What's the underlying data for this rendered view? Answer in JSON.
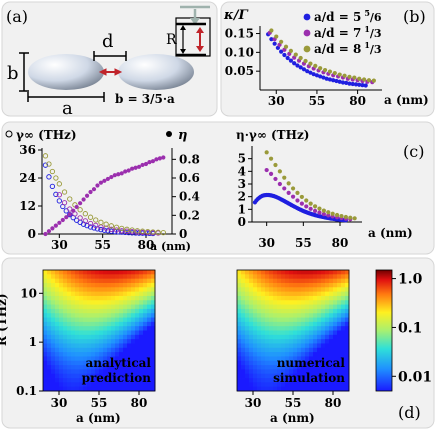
{
  "panels": {
    "a": {
      "tag": "(a)",
      "label_b": "b",
      "label_a": "a",
      "label_d": "d",
      "label_R": "R",
      "relation": "b = 3/5·a"
    }
  },
  "colors": {
    "background": "#ffffff",
    "panel_bg": "#f1f1f1",
    "panel_border": "#d6d6d6",
    "ratio_5_5_6": "#1f1fe0",
    "ratio_7_1_3": "#9b2fae",
    "ratio_8_1_3": "#9a9a3a",
    "arrow_red": "#c0242a"
  },
  "chart_data": [
    {
      "id": "b",
      "type": "scatter",
      "panel_tag": "(b)",
      "title": "κ/Γ",
      "xlabel": "a (nm)",
      "ylabel": "",
      "xlim": [
        20,
        95
      ],
      "ylim": [
        0.0,
        0.17
      ],
      "xticks": [
        30,
        55,
        80
      ],
      "yticks": [
        0.05,
        0.1,
        0.15
      ],
      "ytick_labels": [
        "0.05",
        "0.10",
        "0.15"
      ],
      "legend_position": "top-right",
      "series": [
        {
          "name": "a/d = 5 5/6",
          "legend_main": "a/d = 5",
          "legend_sup": "5",
          "legend_sub": "/6",
          "color": "#1f1fe0",
          "x": [
            25,
            27,
            29,
            31,
            33,
            35,
            37,
            39,
            41,
            43,
            45,
            47,
            49,
            51,
            53,
            55,
            57,
            59,
            61,
            63,
            65,
            67,
            69,
            71,
            73,
            75,
            77,
            79,
            81,
            83,
            85
          ],
          "y": [
            0.148,
            0.135,
            0.123,
            0.112,
            0.102,
            0.093,
            0.085,
            0.078,
            0.071,
            0.065,
            0.06,
            0.055,
            0.05,
            0.046,
            0.042,
            0.039,
            0.036,
            0.033,
            0.03,
            0.028,
            0.026,
            0.024,
            0.022,
            0.02,
            0.019,
            0.017,
            0.016,
            0.015,
            0.014,
            0.013,
            0.012
          ]
        },
        {
          "name": "a/d = 7 1/3",
          "legend_main": "a/d = 7",
          "legend_sup": "1",
          "legend_sub": "/3",
          "color": "#9b2fae",
          "x": [
            26,
            29,
            32,
            35,
            38,
            41,
            44,
            47,
            50,
            53,
            56,
            59,
            62,
            65,
            68,
            71,
            74,
            77,
            80,
            83,
            86,
            89
          ],
          "y": [
            0.152,
            0.135,
            0.12,
            0.107,
            0.096,
            0.086,
            0.078,
            0.07,
            0.063,
            0.057,
            0.052,
            0.047,
            0.043,
            0.039,
            0.036,
            0.033,
            0.03,
            0.028,
            0.026,
            0.024,
            0.022,
            0.021
          ]
        },
        {
          "name": "a/d = 8 1/3",
          "legend_main": "a/d = 8",
          "legend_sup": "1",
          "legend_sub": "/3",
          "color": "#9a9a3a",
          "x": [
            27,
            30,
            33,
            36,
            39,
            42,
            45,
            48,
            51,
            54,
            57,
            60,
            63,
            66,
            69,
            72,
            75,
            78,
            81,
            84,
            87,
            90
          ],
          "y": [
            0.158,
            0.142,
            0.128,
            0.115,
            0.104,
            0.094,
            0.085,
            0.077,
            0.07,
            0.064,
            0.058,
            0.053,
            0.049,
            0.045,
            0.041,
            0.038,
            0.035,
            0.033,
            0.03,
            0.028,
            0.026,
            0.025
          ]
        }
      ]
    },
    {
      "id": "c_left",
      "type": "scatter",
      "panel_tag": "(c)",
      "left_axis_label": "γ∞ (THz)",
      "right_axis_label": "η",
      "xlabel": "a (nm)",
      "xlim": [
        20,
        95
      ],
      "ylim_left": [
        0,
        36
      ],
      "ylim_right": [
        0,
        0.9
      ],
      "xticks": [
        30,
        55,
        80
      ],
      "yticks_left": [
        0,
        12,
        24,
        36
      ],
      "yticks_right": [
        0,
        0.2,
        0.4,
        0.6,
        0.8
      ],
      "ytick_right_labels": [
        "0",
        "0.2",
        "0.4",
        "0.6",
        "0.8"
      ],
      "legend": [
        {
          "symbol": "open-circle",
          "text": "γ∞ (THz)"
        },
        {
          "symbol": "filled-circle",
          "text": "η"
        }
      ],
      "series": [
        {
          "name": "γ∞ a/d = 5 5/6",
          "axis": "left",
          "marker": "open",
          "color": "#1f1fe0",
          "x": [
            22,
            24,
            26,
            28,
            30,
            32,
            34,
            36,
            38,
            40,
            42,
            44,
            46,
            48,
            50,
            52,
            54,
            56,
            58,
            60,
            62,
            64,
            66,
            68,
            70,
            72,
            74,
            76,
            78,
            80,
            82,
            84
          ],
          "y": [
            29.5,
            24.5,
            20.4,
            17.0,
            14.2,
            11.8,
            9.9,
            8.3,
            7.0,
            5.9,
            5.0,
            4.2,
            3.6,
            3.0,
            2.6,
            2.2,
            1.9,
            1.6,
            1.4,
            1.2,
            1.0,
            0.9,
            0.8,
            0.7,
            0.6,
            0.5,
            0.45,
            0.4,
            0.35,
            0.3,
            0.27,
            0.24
          ]
        },
        {
          "name": "γ∞ a/d = 7 1/3",
          "axis": "left",
          "marker": "open",
          "color": "#9b2fae",
          "x": [
            30,
            33,
            36,
            39,
            42,
            45,
            48,
            51,
            54,
            57,
            60,
            63,
            66,
            69,
            72,
            75,
            78,
            81,
            84,
            87
          ],
          "y": [
            16.8,
            13.4,
            10.7,
            8.6,
            6.9,
            5.6,
            4.5,
            3.7,
            3.0,
            2.5,
            2.0,
            1.7,
            1.4,
            1.2,
            1.0,
            0.8,
            0.7,
            0.6,
            0.5,
            0.45
          ]
        },
        {
          "name": "γ∞ a/d = 8 1/3",
          "axis": "left",
          "marker": "open",
          "color": "#9a9a3a",
          "x": [
            22,
            24,
            26,
            28,
            30,
            33,
            36,
            39,
            42,
            45,
            48,
            51,
            54,
            57,
            60,
            63,
            66,
            69,
            72,
            75,
            78,
            81,
            84,
            87,
            90
          ],
          "y": [
            33.5,
            30.0,
            26.8,
            24.0,
            21.5,
            18.0,
            15.0,
            12.5,
            10.4,
            8.7,
            7.2,
            6.0,
            5.0,
            4.2,
            3.5,
            2.9,
            2.4,
            2.0,
            1.7,
            1.4,
            1.2,
            1.0,
            0.85,
            0.72,
            0.6
          ]
        },
        {
          "name": "η",
          "axis": "right",
          "marker": "filled",
          "color": "#9b2fae",
          "x": [
            22,
            24,
            26,
            28,
            30,
            32,
            34,
            36,
            38,
            40,
            42,
            44,
            46,
            48,
            50,
            52,
            54,
            56,
            58,
            60,
            62,
            64,
            66,
            68,
            70,
            72,
            74,
            76,
            78,
            80,
            82,
            84,
            86,
            88,
            90
          ],
          "y": [
            0.0,
            0.03,
            0.06,
            0.09,
            0.12,
            0.15,
            0.18,
            0.21,
            0.25,
            0.29,
            0.33,
            0.37,
            0.41,
            0.45,
            0.48,
            0.52,
            0.55,
            0.57,
            0.59,
            0.61,
            0.63,
            0.64,
            0.65,
            0.67,
            0.68,
            0.7,
            0.71,
            0.72,
            0.74,
            0.75,
            0.77,
            0.78,
            0.8,
            0.81,
            0.82
          ]
        }
      ]
    },
    {
      "id": "c_right",
      "type": "scatter",
      "title": "η·γ∞ (THz)",
      "xlabel": "a (nm)",
      "xlim": [
        20,
        95
      ],
      "ylim": [
        0,
        6
      ],
      "xticks": [
        30,
        55,
        80
      ],
      "yticks": [
        0,
        1,
        2,
        3,
        4,
        5
      ],
      "series": [
        {
          "name": "a/d = 5 5/6",
          "color": "#1f1fe0",
          "x": [
            22,
            23,
            24,
            25,
            26,
            27,
            28,
            29,
            30,
            31,
            32,
            33,
            34,
            35,
            36,
            37,
            38,
            39,
            40,
            41,
            42,
            43,
            44,
            45,
            46,
            47,
            48,
            49,
            50,
            51,
            52,
            53,
            54,
            55,
            56,
            57,
            58,
            59,
            60,
            61,
            62,
            63,
            64,
            65,
            66,
            67,
            68,
            69,
            70,
            71,
            72,
            73,
            74,
            75,
            76,
            77,
            78,
            79,
            80,
            81,
            82,
            83,
            84
          ],
          "y": [
            1.55,
            1.7,
            1.82,
            1.92,
            2.0,
            2.06,
            2.1,
            2.12,
            2.13,
            2.13,
            2.12,
            2.1,
            2.07,
            2.04,
            2.0,
            1.95,
            1.9,
            1.84,
            1.78,
            1.72,
            1.66,
            1.59,
            1.53,
            1.46,
            1.4,
            1.33,
            1.27,
            1.21,
            1.15,
            1.09,
            1.03,
            0.98,
            0.92,
            0.87,
            0.82,
            0.78,
            0.73,
            0.69,
            0.65,
            0.61,
            0.58,
            0.54,
            0.51,
            0.48,
            0.45,
            0.43,
            0.4,
            0.38,
            0.35,
            0.33,
            0.31,
            0.29,
            0.27,
            0.26,
            0.24,
            0.22,
            0.21,
            0.2,
            0.18,
            0.17,
            0.16,
            0.15,
            0.14
          ]
        },
        {
          "name": "a/d = 7 1/3",
          "color": "#9b2fae",
          "x": [
            30,
            33,
            36,
            39,
            42,
            45,
            48,
            51,
            54,
            57,
            60,
            63,
            66,
            69,
            72,
            75,
            78,
            81,
            84,
            87
          ],
          "y": [
            4.1,
            3.8,
            3.4,
            3.0,
            2.65,
            2.3,
            2.0,
            1.7,
            1.45,
            1.23,
            1.04,
            0.88,
            0.74,
            0.62,
            0.52,
            0.44,
            0.37,
            0.31,
            0.26,
            0.22
          ]
        },
        {
          "name": "a/d = 8 1/3",
          "color": "#9a9a3a",
          "x": [
            30,
            33,
            36,
            39,
            42,
            45,
            48,
            51,
            54,
            57,
            60,
            63,
            66,
            69,
            72,
            75,
            78,
            81,
            84,
            87,
            90
          ],
          "y": [
            5.5,
            5.0,
            4.5,
            4.0,
            3.5,
            3.05,
            2.65,
            2.3,
            1.98,
            1.7,
            1.45,
            1.24,
            1.06,
            0.9,
            0.77,
            0.65,
            0.55,
            0.47,
            0.4,
            0.34,
            0.29
          ]
        }
      ]
    },
    {
      "id": "d_left",
      "type": "heatmap",
      "panel_tag": "(d)",
      "annotation": [
        "analytical",
        "prediction"
      ],
      "xlabel": "a (nm)",
      "ylabel": "R (THz)",
      "xlim": [
        20,
        90
      ],
      "ylim_log": [
        0.1,
        30
      ],
      "yscale": "log",
      "xticks": [
        30,
        55,
        80
      ],
      "yticks": [
        0.1,
        1,
        10
      ],
      "ytick_labels": [
        "0.1",
        "1",
        "10"
      ],
      "colorbar": {
        "scale": "log",
        "min": 0.005,
        "max": 1.5,
        "ticks": [
          1.0,
          0.1,
          0.01
        ],
        "labels": [
          "1.0",
          "0.1",
          "0.01"
        ]
      }
    },
    {
      "id": "d_right",
      "type": "heatmap",
      "annotation": [
        "numerical",
        "simulation"
      ],
      "xlabel": "a (nm)",
      "xlim": [
        20,
        90
      ],
      "ylim_log": [
        0.1,
        30
      ],
      "yscale": "log",
      "xticks": [
        30,
        55,
        80
      ]
    }
  ]
}
